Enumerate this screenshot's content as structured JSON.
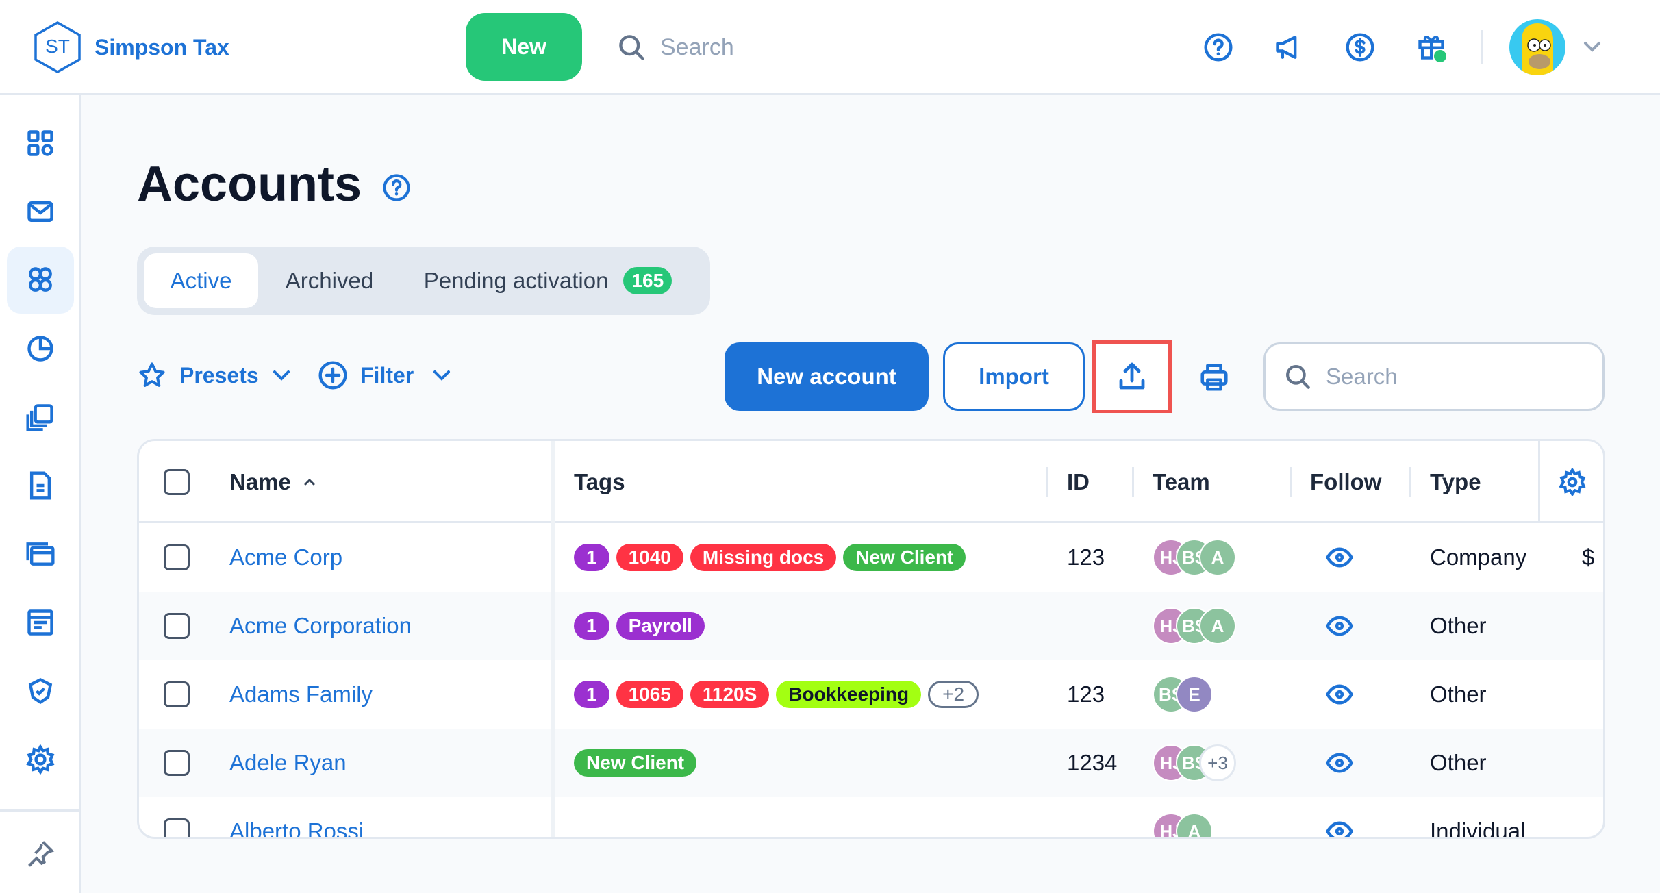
{
  "app": {
    "logo_initials": "ST",
    "name": "Simpson Tax"
  },
  "header": {
    "new_label": "New",
    "search_placeholder": "Search",
    "icons": [
      "help-icon",
      "megaphone-icon",
      "dollar-icon",
      "gift-icon"
    ],
    "gift_notification": true
  },
  "sidebar": {
    "items": [
      {
        "icon": "dashboard-icon"
      },
      {
        "icon": "mail-icon"
      },
      {
        "icon": "accounts-icon",
        "active": true
      },
      {
        "icon": "pie-chart-icon"
      },
      {
        "icon": "documents-icon"
      },
      {
        "icon": "invoice-icon"
      },
      {
        "icon": "billing-icon"
      },
      {
        "icon": "forms-icon"
      },
      {
        "icon": "badge-icon"
      },
      {
        "icon": "settings-icon"
      }
    ],
    "pin_icon": "pin-icon"
  },
  "page": {
    "title": "Accounts",
    "tabs": [
      {
        "label": "Active",
        "active": true
      },
      {
        "label": "Archived"
      },
      {
        "label": "Pending activation",
        "badge": "165"
      }
    ],
    "toolbar": {
      "presets_label": "Presets",
      "filter_label": "Filter",
      "new_account_label": "New account",
      "import_label": "Import",
      "search_placeholder": "Search"
    }
  },
  "colors": {
    "primary": "#1d72d6",
    "green": "#26c778",
    "highlight": "#ef5350"
  },
  "table": {
    "columns": {
      "name": "Name",
      "tags": "Tags",
      "id": "ID",
      "team": "Team",
      "follow": "Follow",
      "type": "Type"
    },
    "sort": {
      "column": "name",
      "direction": "asc"
    },
    "rows": [
      {
        "name": "Acme Corp",
        "tags": [
          {
            "label": "1",
            "color": "#9b30d0"
          },
          {
            "label": "1040",
            "color": "#ff3344"
          },
          {
            "label": "Missing docs",
            "color": "#ff3344"
          },
          {
            "label": "New Client",
            "color": "#3cb84a"
          }
        ],
        "id": "123",
        "team": [
          {
            "initials": "HJ",
            "color": "#c58bc0"
          },
          {
            "initials": "BS",
            "color": "#8cc39e"
          },
          {
            "initials": "A",
            "color": "#8cc39e"
          }
        ],
        "type": "Company",
        "extra": "$"
      },
      {
        "name": "Acme Corporation",
        "tags": [
          {
            "label": "1",
            "color": "#9b30d0"
          },
          {
            "label": "Payroll",
            "color": "#9b30d0"
          }
        ],
        "id": "",
        "team": [
          {
            "initials": "HJ",
            "color": "#c58bc0"
          },
          {
            "initials": "BS",
            "color": "#8cc39e"
          },
          {
            "initials": "A",
            "color": "#8cc39e"
          }
        ],
        "type": "Other"
      },
      {
        "name": "Adams Family",
        "tags": [
          {
            "label": "1",
            "color": "#9b30d0"
          },
          {
            "label": "1065",
            "color": "#ff3344"
          },
          {
            "label": "1120S",
            "color": "#ff3344"
          },
          {
            "label": "Bookkeeping",
            "color": "#a3ff12",
            "text": "#0f172a"
          },
          {
            "label": "+2",
            "outline": true
          }
        ],
        "id": "123",
        "team": [
          {
            "initials": "BS",
            "color": "#8cc39e"
          },
          {
            "initials": "E",
            "color": "#9288c2"
          }
        ],
        "type": "Other"
      },
      {
        "name": "Adele Ryan",
        "tags": [
          {
            "label": "New Client",
            "color": "#3cb84a"
          }
        ],
        "id": "1234",
        "team": [
          {
            "initials": "HJ",
            "color": "#c58bc0"
          },
          {
            "initials": "BS",
            "color": "#8cc39e"
          },
          {
            "initials": "+3",
            "more": true
          }
        ],
        "type": "Other"
      },
      {
        "name": "Alberto Rossi",
        "tags": [],
        "id": "",
        "team": [
          {
            "initials": "HJ",
            "color": "#c58bc0"
          },
          {
            "initials": "A",
            "color": "#8cc39e"
          }
        ],
        "type": "Individual"
      }
    ]
  }
}
